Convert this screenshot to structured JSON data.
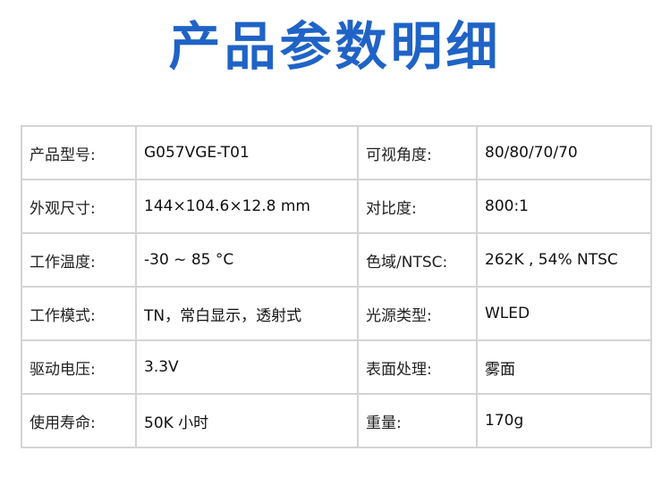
{
  "title": "产品参数明细",
  "rows": [
    {
      "label1": "产品型号:",
      "value1": "G057VGE-T01",
      "label2": "可视角度:",
      "value2": "80/80/70/70"
    },
    {
      "label1": "外观尺寸:",
      "value1": "144×104.6×12.8 mm",
      "label2": "对比度:",
      "value2": "800:1"
    },
    {
      "label1": "工作温度:",
      "value1": "-30 ~ 85  °C",
      "label2": "色域/NTSC:",
      "value2": "262K , 54% NTSC"
    },
    {
      "label1": "工作模式:",
      "value1": "TN，常白显示，透射式",
      "label2": "光源类型:",
      "value2": "WLED"
    },
    {
      "label1": "驱动电压:",
      "value1": "3.3V",
      "label2": "表面处理:",
      "value2": "雾面"
    },
    {
      "label1": "使用寿命:",
      "value1": "50K 小时",
      "label2": "重量:",
      "value2": "170g"
    }
  ]
}
